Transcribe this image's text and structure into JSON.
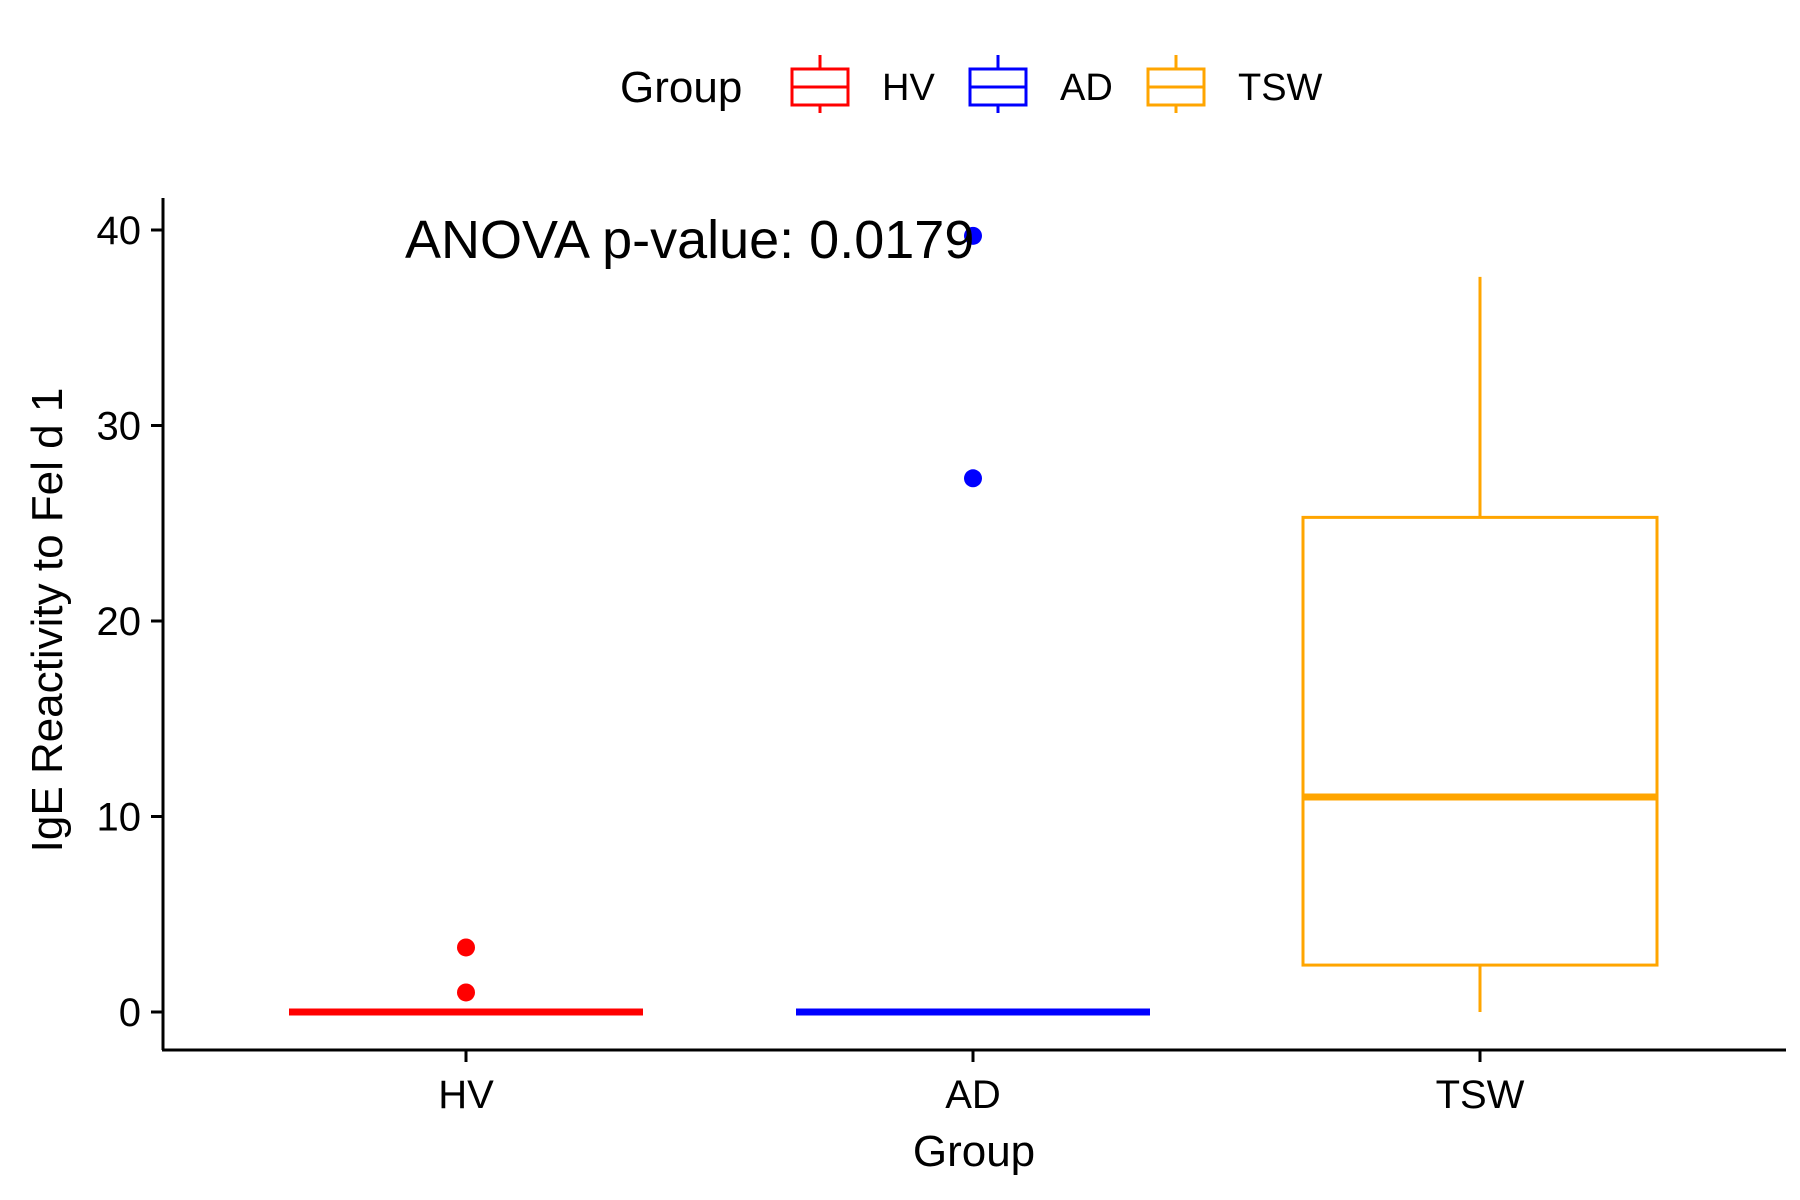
{
  "chart_data": {
    "type": "box",
    "xlabel": "Group",
    "ylabel": "IgE Reactivity to Fel d 1",
    "ylim": [
      -2,
      42
    ],
    "yticks": [
      0,
      10,
      20,
      30,
      40
    ],
    "categories": [
      "HV",
      "AD",
      "TSW"
    ],
    "annotation": "ANOVA p-value: 0.0179",
    "legend": {
      "title": "Group",
      "position": "top",
      "entries": [
        "HV",
        "AD",
        "TSW"
      ]
    },
    "grid": false,
    "series": [
      {
        "name": "HV",
        "color": "#ff0000",
        "min": 0,
        "q1": 0,
        "median": 0,
        "q3": 0,
        "max": 0,
        "outliers": [
          3.3,
          1.0
        ]
      },
      {
        "name": "AD",
        "color": "#0000ff",
        "min": 0,
        "q1": 0,
        "median": 0,
        "q3": 0,
        "max": 0,
        "outliers": [
          39.7,
          27.3
        ]
      },
      {
        "name": "TSW",
        "color": "#ffa500",
        "min": 0,
        "q1": 2.4,
        "median": 11.0,
        "q3": 25.3,
        "max": 37.6,
        "outliers": []
      }
    ]
  }
}
